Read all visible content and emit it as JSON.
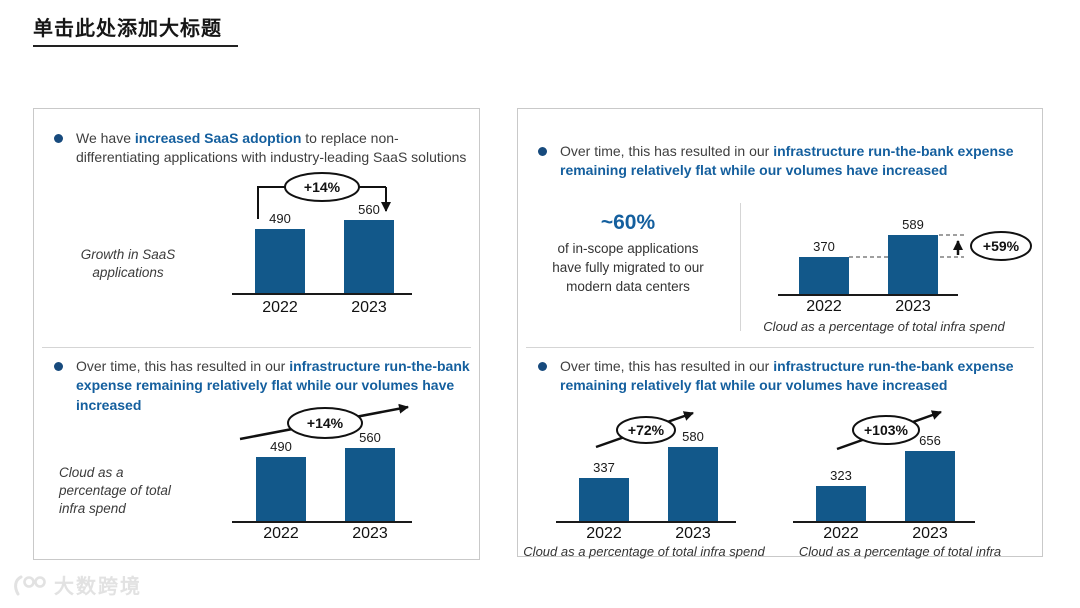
{
  "title": "单击此处添加大标题",
  "watermark": "大数跨境",
  "colors": {
    "bar": "#12588a",
    "highlight_text": "#145f9e",
    "bullet_dot": "#174a7d",
    "body_text": "#3f3f3f",
    "panel_border": "#c9c9c9"
  },
  "left_panel": {
    "bullet1": {
      "prefix": "We have ",
      "highlight": "increased SaaS adoption",
      "suffix": " to replace non-differentiating applications with industry-leading SaaS solutions"
    },
    "bullet2": {
      "prefix": "Over time, this has resulted in our ",
      "highlight": "infrastructure run-the-bank expense remaining relatively flat while our volumes have increased"
    }
  },
  "right_panel": {
    "bullet1": {
      "prefix": "Over time, this has resulted in our ",
      "highlight": "infrastructure run-the-bank expense remaining relatively flat while our volumes have increased"
    },
    "stat": {
      "value": "~60%",
      "description": "of in-scope applications have fully migrated to our modern data centers"
    },
    "bullet2": {
      "prefix": "Over time, this has resulted in our ",
      "highlight": "infrastructure run-the-bank expense remaining relatively flat while our volumes have increased"
    }
  },
  "chart_data": [
    {
      "type": "bar",
      "side_label": "Growth in SaaS applications",
      "categories": [
        "2022",
        "2023"
      ],
      "values": [
        490,
        560
      ],
      "annotation": "+14%",
      "annotation_style": "bracket-down-arrow",
      "legend": "none",
      "grid": false
    },
    {
      "type": "bar",
      "side_label": "Cloud as a percentage of total infra spend",
      "categories": [
        "2022",
        "2023"
      ],
      "values": [
        490,
        560
      ],
      "annotation": "+14%",
      "annotation_style": "diagonal-up-arrow",
      "legend": "none",
      "grid": false
    },
    {
      "type": "bar",
      "caption": "Cloud as a percentage of total infra spend",
      "categories": [
        "2022",
        "2023"
      ],
      "values": [
        370,
        589
      ],
      "annotation": "+59%",
      "annotation_style": "dashed-step-up-arrow",
      "legend": "none",
      "grid": false
    },
    {
      "type": "bar",
      "caption": "Cloud as a percentage of total infra spend",
      "categories": [
        "2022",
        "2023"
      ],
      "values": [
        337,
        580
      ],
      "annotation": "+72%",
      "annotation_style": "diagonal-up-arrow",
      "legend": "none",
      "grid": false
    },
    {
      "type": "bar",
      "caption": "Cloud as a percentage of total infra",
      "categories": [
        "2022",
        "2023"
      ],
      "values": [
        323,
        656
      ],
      "annotation": "+103%",
      "annotation_style": "diagonal-up-arrow",
      "legend": "none",
      "grid": false
    }
  ]
}
